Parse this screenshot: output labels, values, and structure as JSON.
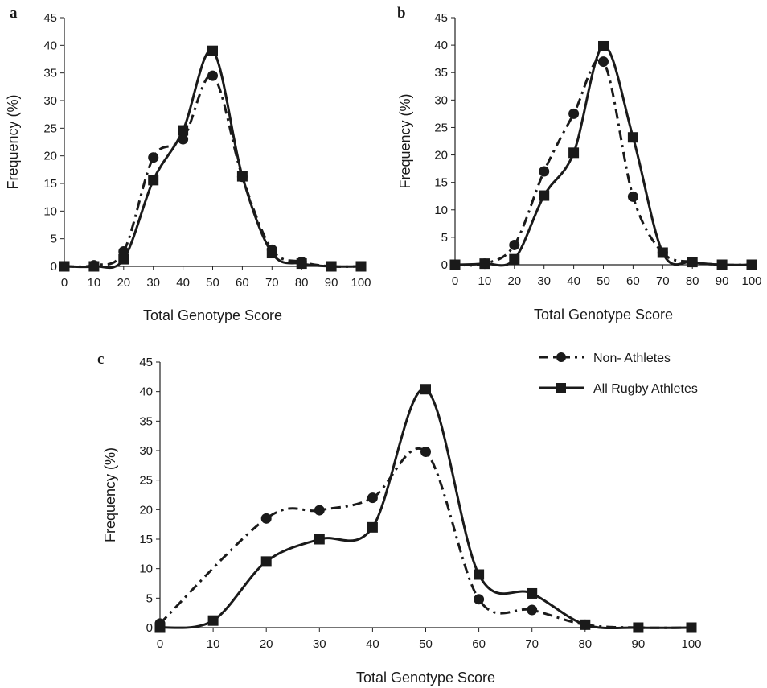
{
  "legend": {
    "items": [
      {
        "label": "Non- Athletes",
        "style": "dash-dot",
        "marker": "circle"
      },
      {
        "label": "All Rugby Athletes",
        "style": "solid",
        "marker": "square"
      }
    ],
    "placement": "top-right of panel c"
  },
  "colors": {
    "series": "#1a1a1a"
  },
  "chart_data": [
    {
      "panel": "a",
      "type": "line",
      "xlabel": "Total Genotype Score",
      "ylabel": "Frequency (%)",
      "xlim": [
        0,
        100
      ],
      "ylim": [
        0,
        45
      ],
      "xticks": [
        0,
        10,
        20,
        30,
        40,
        50,
        60,
        70,
        80,
        90,
        100
      ],
      "yticks": [
        0,
        5,
        10,
        15,
        20,
        25,
        30,
        35,
        40,
        45
      ],
      "grid": false,
      "series": [
        {
          "name": "Non- Athletes",
          "x": [
            0,
            10,
            20,
            30,
            40,
            50,
            60,
            70,
            80,
            90,
            100
          ],
          "values": [
            0,
            0.2,
            2.7,
            19.7,
            23.0,
            34.5,
            16.2,
            3.0,
            0.8,
            0,
            0
          ]
        },
        {
          "name": "All Rugby Athletes",
          "x": [
            0,
            10,
            20,
            30,
            40,
            50,
            60,
            70,
            80,
            90,
            100
          ],
          "values": [
            0,
            0,
            1.3,
            15.6,
            24.6,
            39.0,
            16.3,
            2.4,
            0.5,
            0,
            0
          ]
        }
      ]
    },
    {
      "panel": "b",
      "type": "line",
      "xlabel": "Total Genotype Score",
      "ylabel": "Frequency (%)",
      "xlim": [
        0,
        100
      ],
      "ylim": [
        0,
        45
      ],
      "xticks": [
        0,
        10,
        20,
        30,
        40,
        50,
        60,
        70,
        80,
        90,
        100
      ],
      "yticks": [
        0,
        5,
        10,
        15,
        20,
        25,
        30,
        35,
        40,
        45
      ],
      "grid": false,
      "series": [
        {
          "name": "Non- Athletes",
          "x": [
            0,
            10,
            20,
            30,
            40,
            50,
            60,
            70,
            80,
            90,
            100
          ],
          "values": [
            0,
            0.2,
            3.6,
            17.0,
            27.5,
            37.0,
            12.4,
            2.2,
            0.5,
            0,
            0
          ]
        },
        {
          "name": "All Rugby Athletes",
          "x": [
            0,
            10,
            20,
            30,
            40,
            50,
            60,
            70,
            80,
            90,
            100
          ],
          "values": [
            0,
            0.2,
            1.0,
            12.6,
            20.4,
            39.8,
            23.2,
            2.2,
            0.5,
            0,
            0
          ]
        }
      ]
    },
    {
      "panel": "c",
      "type": "line",
      "xlabel": "Total Genotype Score",
      "ylabel": "Frequency (%)",
      "xlim": [
        0,
        100
      ],
      "ylim": [
        0,
        45
      ],
      "xticks": [
        0,
        10,
        20,
        30,
        40,
        50,
        60,
        70,
        80,
        90,
        100
      ],
      "yticks": [
        0,
        5,
        10,
        15,
        20,
        25,
        30,
        35,
        40,
        45
      ],
      "grid": false,
      "series": [
        {
          "name": "Non- Athletes",
          "x": [
            0,
            20,
            30,
            40,
            50,
            60,
            70,
            80,
            90,
            100
          ],
          "values": [
            0.7,
            18.5,
            19.9,
            22.0,
            29.8,
            4.8,
            3.0,
            0.5,
            0,
            0
          ]
        },
        {
          "name": "All Rugby Athletes",
          "x": [
            0,
            10,
            20,
            30,
            40,
            50,
            60,
            70,
            80,
            90,
            100
          ],
          "values": [
            0,
            1.2,
            11.2,
            15.0,
            17.0,
            40.4,
            9.0,
            5.8,
            0.5,
            0,
            0
          ]
        }
      ]
    }
  ]
}
